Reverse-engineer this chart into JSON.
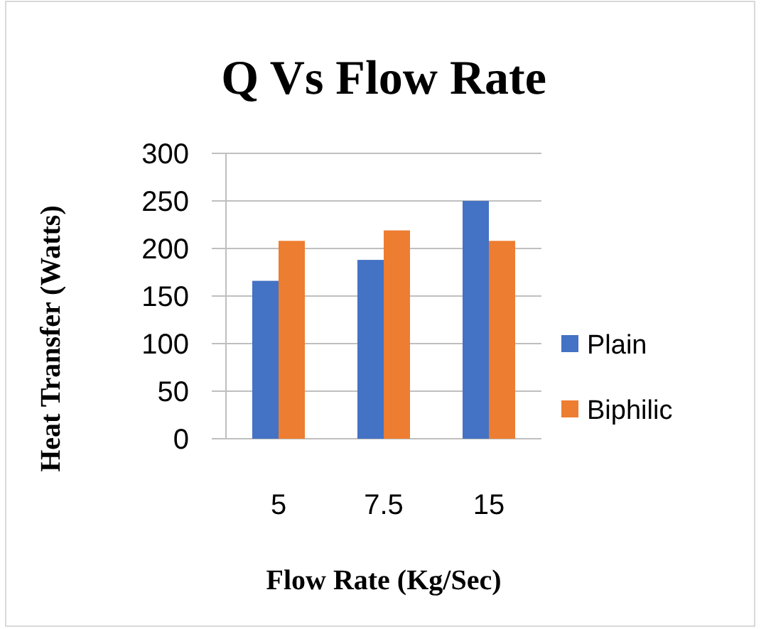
{
  "chart_data": {
    "type": "bar",
    "title": "Q Vs Flow Rate",
    "xlabel": "Flow Rate (Kg/Sec)",
    "ylabel": "Heat Transfer  (Watts)",
    "categories": [
      "5",
      "7.5",
      "15"
    ],
    "series": [
      {
        "name": "Plain",
        "color": "#4472c4",
        "values": [
          166,
          188,
          250
        ]
      },
      {
        "name": "Biphilic",
        "color": "#ed7d31",
        "values": [
          208,
          219,
          208
        ]
      }
    ],
    "ylim": [
      0,
      300
    ],
    "yticks": [
      0,
      50,
      100,
      150,
      200,
      250,
      300
    ],
    "grid": "y",
    "legend": "right"
  }
}
